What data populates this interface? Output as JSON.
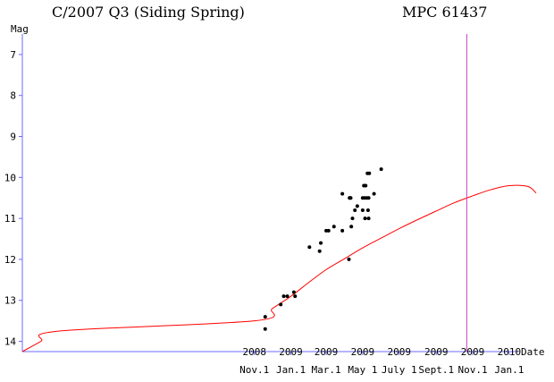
{
  "header": {
    "title": "C/2007 Q3 (Siding Spring)",
    "reference": "MPC 61437"
  },
  "chart_data": {
    "type": "scatter",
    "title": "C/2007 Q3 (Siding Spring)",
    "xlabel": "Date",
    "ylabel": "Mag",
    "y_inverted": true,
    "ylim": [
      14.25,
      6.5
    ],
    "xlim": [
      "2007-10-10",
      "2010-02-15"
    ],
    "grid": false,
    "y_ticks": [
      7,
      8,
      9,
      10,
      11,
      12,
      13,
      14
    ],
    "x_ticks": [
      {
        "date": "2008-11-01",
        "year": "2008",
        "label": "Nov.1"
      },
      {
        "date": "2009-01-01",
        "year": "2009",
        "label": "Jan.1"
      },
      {
        "date": "2009-03-01",
        "year": "2009",
        "label": "Mar.1"
      },
      {
        "date": "2009-05-01",
        "year": "2009",
        "label": "May 1"
      },
      {
        "date": "2009-07-01",
        "year": "2009",
        "label": "July 1"
      },
      {
        "date": "2009-09-01",
        "year": "2009",
        "label": "Sept.1"
      },
      {
        "date": "2009-11-01",
        "year": "2009",
        "label": "Nov.1"
      },
      {
        "date": "2010-01-01",
        "year": "2010",
        "label": "Jan.1"
      }
    ],
    "observations": [
      {
        "date": "2008-11-19",
        "mag": 13.4
      },
      {
        "date": "2008-11-19",
        "mag": 13.7
      },
      {
        "date": "2008-12-15",
        "mag": 13.1
      },
      {
        "date": "2008-12-20",
        "mag": 12.9
      },
      {
        "date": "2008-12-26",
        "mag": 12.9
      },
      {
        "date": "2009-01-06",
        "mag": 12.8
      },
      {
        "date": "2009-01-08",
        "mag": 12.9
      },
      {
        "date": "2009-02-01",
        "mag": 11.7
      },
      {
        "date": "2009-02-18",
        "mag": 11.8
      },
      {
        "date": "2009-02-20",
        "mag": 11.6
      },
      {
        "date": "2009-03-01",
        "mag": 11.3
      },
      {
        "date": "2009-03-05",
        "mag": 11.3
      },
      {
        "date": "2009-03-14",
        "mag": 11.2
      },
      {
        "date": "2009-03-28",
        "mag": 10.4
      },
      {
        "date": "2009-03-28",
        "mag": 11.3
      },
      {
        "date": "2009-04-08",
        "mag": 12.0
      },
      {
        "date": "2009-04-09",
        "mag": 10.5
      },
      {
        "date": "2009-04-10",
        "mag": 10.5
      },
      {
        "date": "2009-04-11",
        "mag": 10.5
      },
      {
        "date": "2009-04-12",
        "mag": 11.2
      },
      {
        "date": "2009-04-14",
        "mag": 11.0
      },
      {
        "date": "2009-04-18",
        "mag": 10.8
      },
      {
        "date": "2009-04-22",
        "mag": 10.7
      },
      {
        "date": "2009-05-01",
        "mag": 10.5
      },
      {
        "date": "2009-05-01",
        "mag": 10.8
      },
      {
        "date": "2009-05-03",
        "mag": 10.2
      },
      {
        "date": "2009-05-04",
        "mag": 10.5
      },
      {
        "date": "2009-05-05",
        "mag": 11.0
      },
      {
        "date": "2009-05-06",
        "mag": 10.2
      },
      {
        "date": "2009-05-08",
        "mag": 10.5
      },
      {
        "date": "2009-05-09",
        "mag": 9.9
      },
      {
        "date": "2009-05-10",
        "mag": 10.8
      },
      {
        "date": "2009-05-11",
        "mag": 10.5
      },
      {
        "date": "2009-05-11",
        "mag": 11.0
      },
      {
        "date": "2009-05-12",
        "mag": 9.9
      },
      {
        "date": "2009-05-20",
        "mag": 10.4
      },
      {
        "date": "2009-06-01",
        "mag": 9.8
      }
    ],
    "predicted_curve": {
      "color": "#ff0000",
      "points": [
        {
          "date": "2007-10-10",
          "mag": 14.25
        },
        {
          "date": "2007-11-10",
          "mag": 14.0
        },
        {
          "date": "2007-12-10",
          "mag": 13.75
        },
        {
          "date": "2008-11-01",
          "mag": 13.5
        },
        {
          "date": "2008-12-01",
          "mag": 13.2
        },
        {
          "date": "2009-01-01",
          "mag": 12.9
        },
        {
          "date": "2009-02-01",
          "mag": 12.55
        },
        {
          "date": "2009-03-01",
          "mag": 12.25
        },
        {
          "date": "2009-04-01",
          "mag": 11.98
        },
        {
          "date": "2009-05-01",
          "mag": 11.72
        },
        {
          "date": "2009-06-01",
          "mag": 11.48
        },
        {
          "date": "2009-07-01",
          "mag": 11.25
        },
        {
          "date": "2009-08-01",
          "mag": 11.03
        },
        {
          "date": "2009-09-01",
          "mag": 10.82
        },
        {
          "date": "2009-10-01",
          "mag": 10.62
        },
        {
          "date": "2009-11-01",
          "mag": 10.45
        },
        {
          "date": "2009-12-01",
          "mag": 10.3
        },
        {
          "date": "2010-01-01",
          "mag": 10.2
        },
        {
          "date": "2010-02-01",
          "mag": 10.22
        },
        {
          "date": "2010-02-15",
          "mag": 10.38
        }
      ]
    },
    "marker_line": {
      "date": "2009-10-22",
      "color": "#c040c0"
    },
    "colors": {
      "axes": "#6a6aff",
      "points": "#000000",
      "curve": "#ff0000",
      "marker": "#c040c0"
    }
  }
}
